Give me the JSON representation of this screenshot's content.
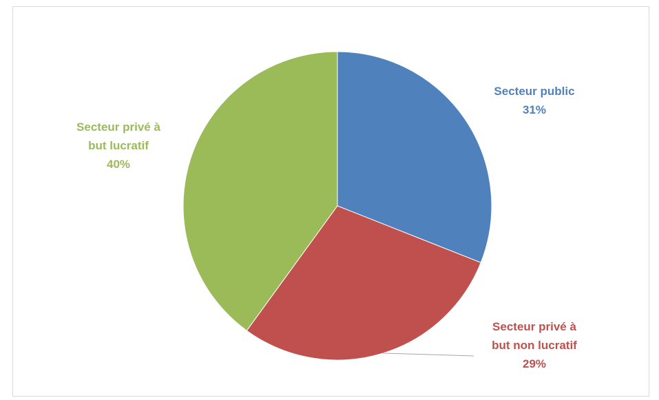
{
  "chart_data": {
    "type": "pie",
    "title": "",
    "slices": [
      {
        "label_lines": [
          "Secteur public"
        ],
        "pct_label": "31%",
        "value": 31,
        "color": "#4f81bd"
      },
      {
        "label_lines": [
          "Secteur privé à",
          "but non lucratif"
        ],
        "pct_label": "29%",
        "value": 29,
        "color": "#c0504d"
      },
      {
        "label_lines": [
          "Secteur privé à",
          "but lucratif"
        ],
        "pct_label": "40%",
        "value": 40,
        "color": "#9bbb59"
      }
    ],
    "legend": "none"
  }
}
